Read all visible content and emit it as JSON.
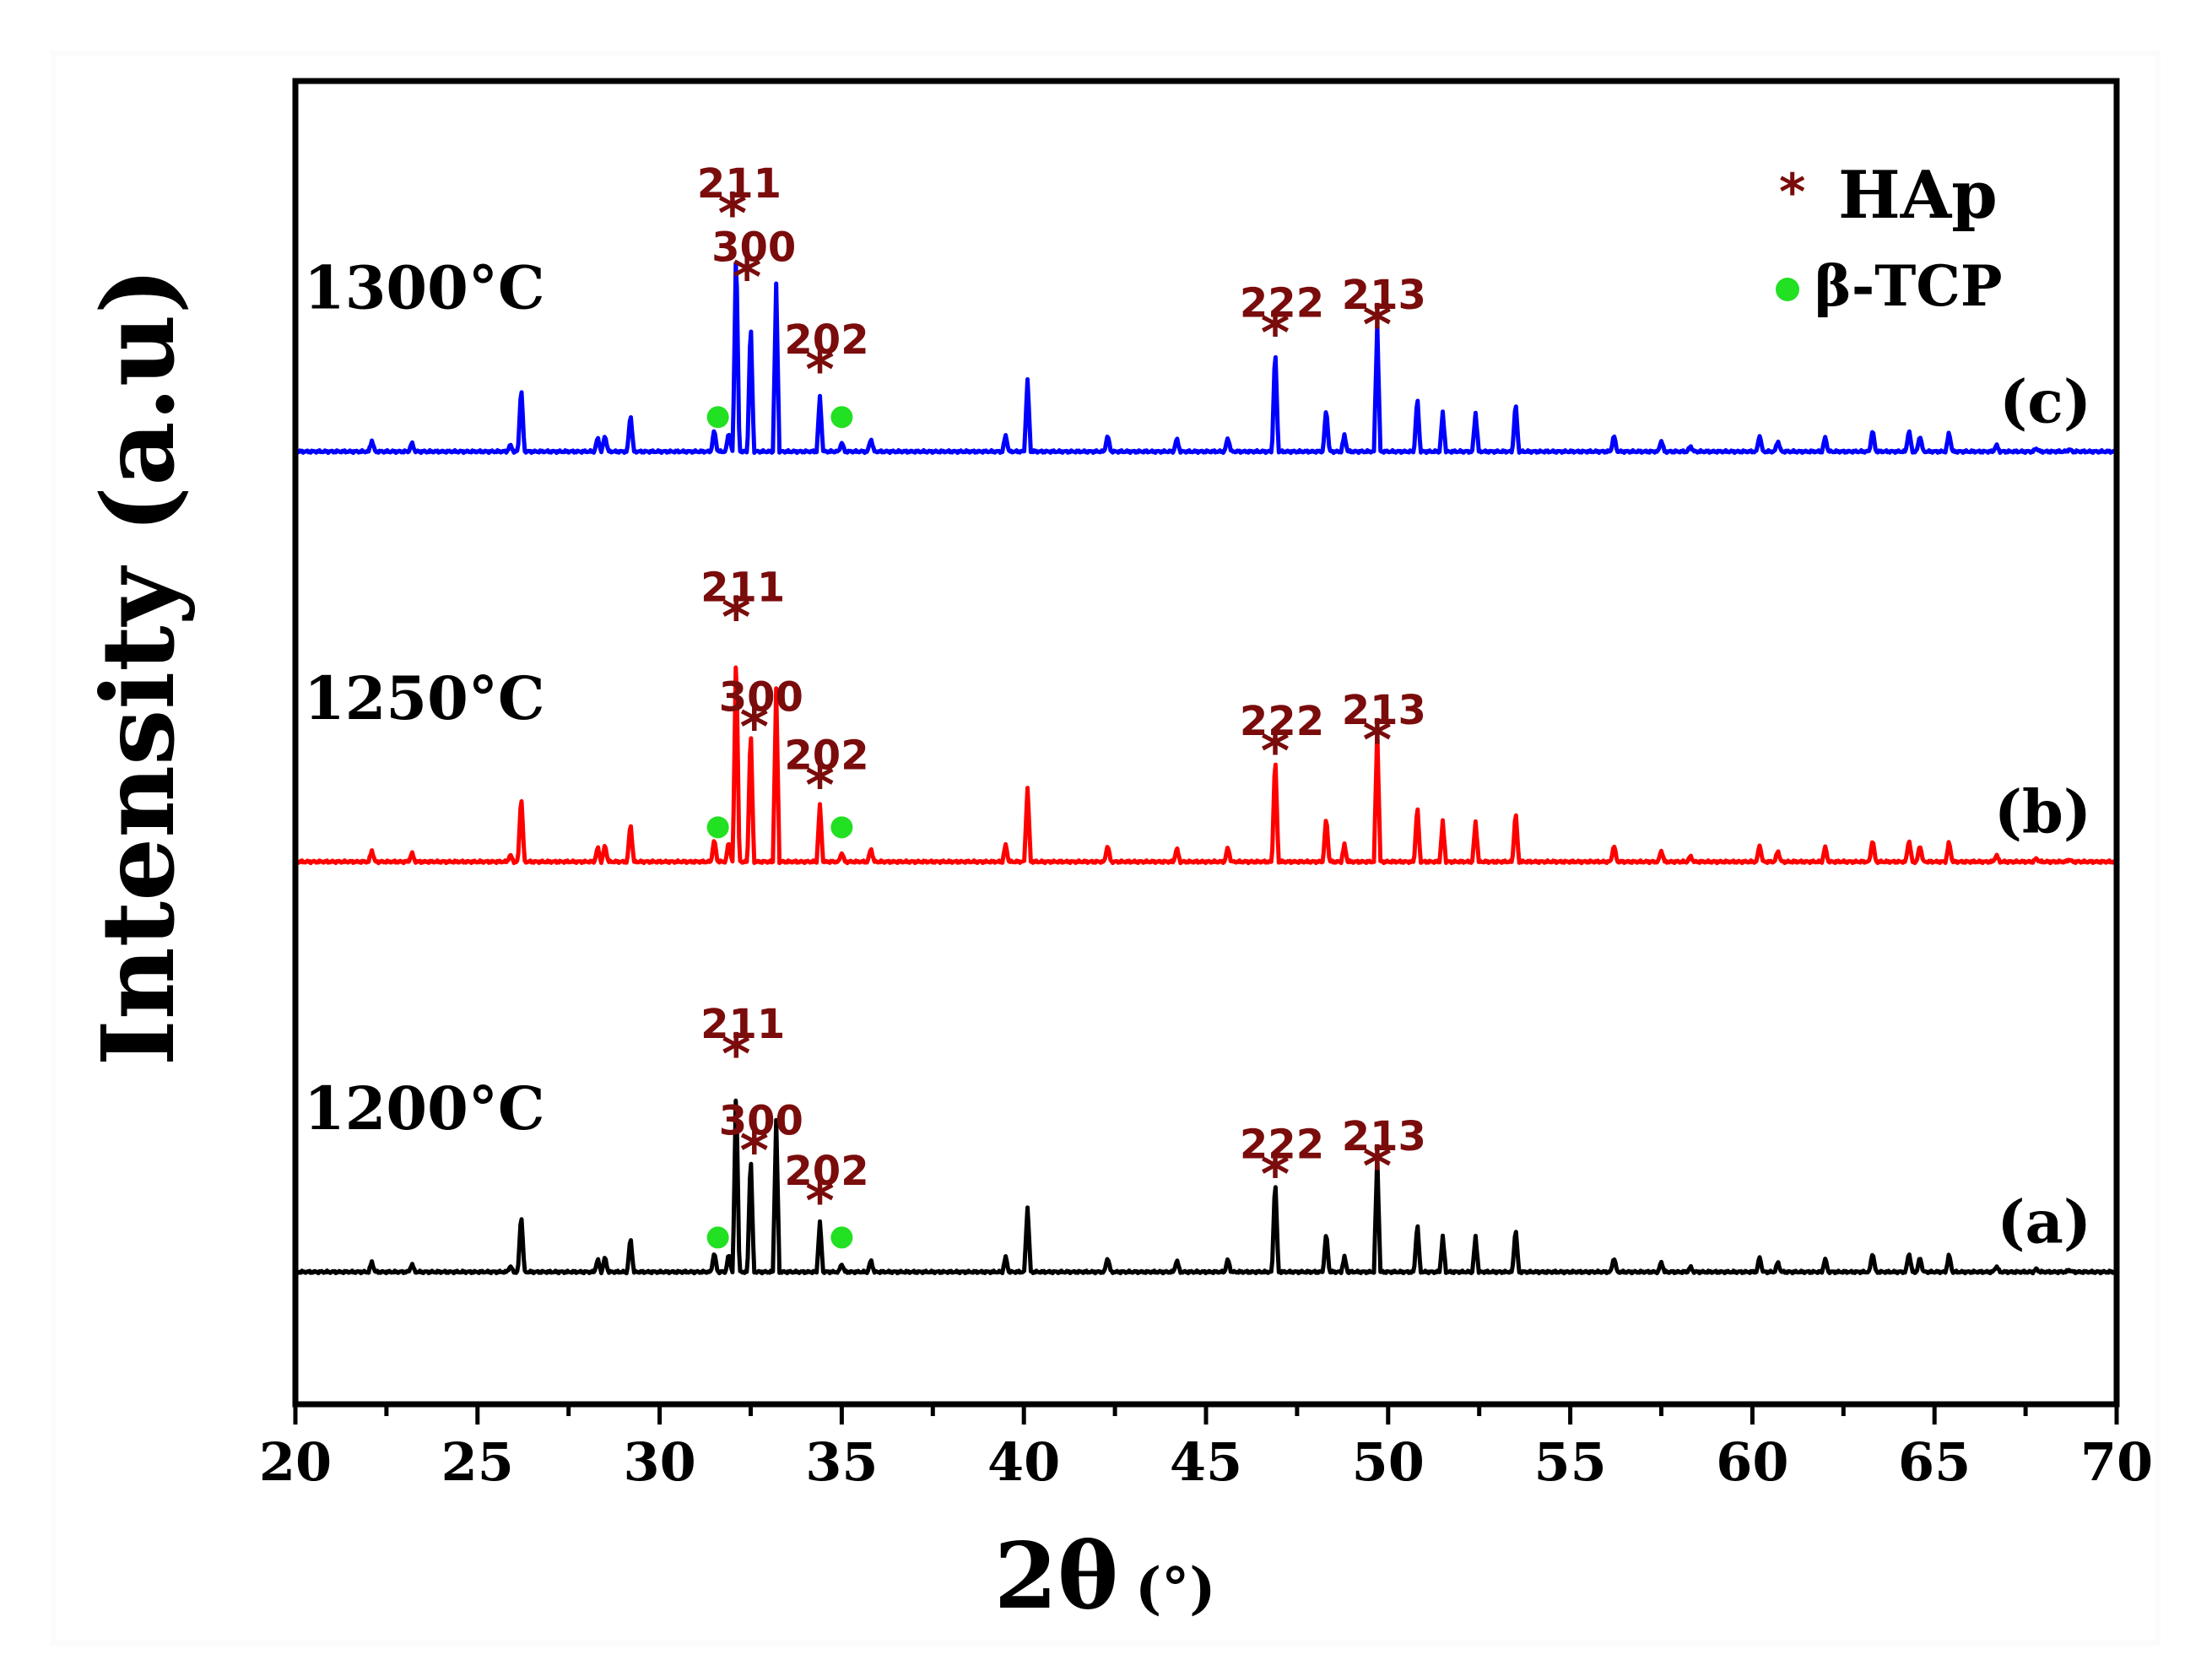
{
  "chart_data": {
    "type": "line",
    "title": "",
    "xlabel": "2θ",
    "xlabel_unit": "(°)",
    "ylabel": "Intensity (a.u)",
    "xlim": [
      20,
      70
    ],
    "ylim": [
      0,
      100
    ],
    "xticks": [
      "20",
      "25",
      "30",
      "35",
      "40",
      "45",
      "50",
      "55",
      "60",
      "65",
      "70"
    ],
    "legend": [
      {
        "marker": "*",
        "label": "HAp",
        "color": "#7a0c0c"
      },
      {
        "marker": "●",
        "label": "β-TCP",
        "color": "#22e022"
      }
    ],
    "peaks": [
      [
        22.1,
        1.0
      ],
      [
        23.2,
        0.8
      ],
      [
        25.9,
        0.6
      ],
      [
        26.2,
        6.0
      ],
      [
        28.3,
        1.3
      ],
      [
        28.5,
        1.5
      ],
      [
        29.2,
        3.5
      ],
      [
        31.5,
        2.0
      ],
      [
        31.9,
        1.8
      ],
      [
        32.1,
        19.0
      ],
      [
        32.5,
        12.0
      ],
      [
        33.2,
        15.0
      ],
      [
        34.4,
        5.0
      ],
      [
        35.0,
        0.8
      ],
      [
        35.8,
        1.2
      ],
      [
        39.5,
        1.5
      ],
      [
        40.1,
        6.5
      ],
      [
        42.3,
        1.5
      ],
      [
        44.2,
        1.2
      ],
      [
        45.6,
        1.3
      ],
      [
        46.9,
        9.5
      ],
      [
        48.3,
        4.0
      ],
      [
        48.8,
        1.5
      ],
      [
        49.7,
        11.5
      ],
      [
        50.8,
        5.0
      ],
      [
        51.5,
        3.5
      ],
      [
        52.4,
        3.5
      ],
      [
        53.5,
        4.5
      ],
      [
        56.2,
        1.5
      ],
      [
        57.5,
        1.0
      ],
      [
        58.3,
        0.5
      ],
      [
        60.2,
        1.5
      ],
      [
        60.7,
        1.0
      ],
      [
        62.0,
        1.3
      ],
      [
        63.3,
        2.0
      ],
      [
        64.3,
        2.0
      ],
      [
        64.6,
        1.5
      ],
      [
        65.4,
        1.8
      ],
      [
        66.7,
        0.6
      ],
      [
        67.8,
        0.3
      ],
      [
        68.7,
        0.2
      ]
    ],
    "series": [
      {
        "name": "1200°C",
        "tag": "(a)",
        "color": "#000000",
        "baseline": 10,
        "annotations": [
          {
            "hkl": "211",
            "x": 32.1,
            "peak_height": 14.5
          },
          {
            "hkl": "300",
            "x": 32.6,
            "peak_height": 7.2
          },
          {
            "hkl": "202",
            "x": 34.4,
            "peak_height": 3.4
          },
          {
            "hkl": "222",
            "x": 46.9,
            "peak_height": 5.4
          },
          {
            "hkl": "213",
            "x": 49.7,
            "peak_height": 6.0
          }
        ],
        "tcp_markers": [
          31.6,
          35.0
        ]
      },
      {
        "name": "1250°C",
        "tag": "(b)",
        "color": "#ff0000",
        "baseline": 41,
        "annotations": [
          {
            "hkl": "211",
            "x": 32.1,
            "peak_height": 16.5
          },
          {
            "hkl": "300",
            "x": 32.6,
            "peak_height": 8.2
          },
          {
            "hkl": "202",
            "x": 34.4,
            "peak_height": 3.8
          },
          {
            "hkl": "222",
            "x": 46.9,
            "peak_height": 6.4
          },
          {
            "hkl": "213",
            "x": 49.7,
            "peak_height": 7.2
          }
        ],
        "tcp_markers": [
          31.6,
          35.0
        ]
      },
      {
        "name": "1300°C",
        "tag": "(c)",
        "color": "#0000ff",
        "baseline": 72,
        "annotations": [
          {
            "hkl": "211",
            "x": 32.0,
            "peak_height": 16.0
          },
          {
            "hkl": "300",
            "x": 32.4,
            "peak_height": 11.2
          },
          {
            "hkl": "202",
            "x": 34.4,
            "peak_height": 4.2
          },
          {
            "hkl": "222",
            "x": 46.9,
            "peak_height": 7.0
          },
          {
            "hkl": "213",
            "x": 49.7,
            "peak_height": 7.6
          }
        ],
        "tcp_markers": [
          31.6,
          35.0
        ]
      }
    ]
  }
}
